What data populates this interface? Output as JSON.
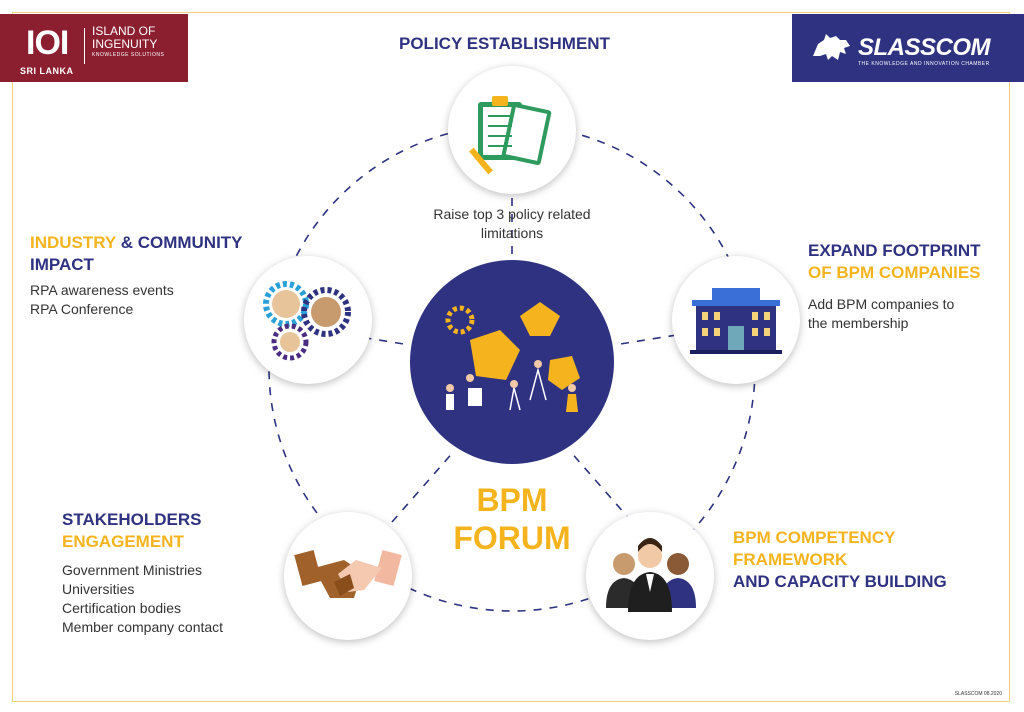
{
  "logos": {
    "ioi": {
      "mark": "IOI",
      "line1": "ISLAND OF",
      "line2": "INGENUITY",
      "line3": "KNOWLEDGE SOLUTIONS",
      "country": "SRI LANKA"
    },
    "slasscom": {
      "name": "SLASSCOM",
      "tagline": "THE KNOWLEDGE AND INNOVATION CHAMBER"
    }
  },
  "center": {
    "line1": "BPM",
    "line2": "FORUM"
  },
  "nodes": {
    "policy": {
      "title": "POLICY ESTABLISHMENT",
      "description_line1": "Raise top 3 policy related",
      "description_line2": "limitations"
    },
    "industry": {
      "title_part1": "INDUSTRY",
      "title_part2": " & COMMUNITY",
      "title_line2": "IMPACT",
      "items": [
        "RPA awareness events",
        "RPA Conference"
      ]
    },
    "expand": {
      "title_line1": "EXPAND FOOTPRINT",
      "title_line2": "OF BPM COMPANIES",
      "description_line1": "Add BPM companies to",
      "description_line2": "the membership"
    },
    "stakeholders": {
      "title_line1": "STAKEHOLDERS",
      "title_line2": "ENGAGEMENT",
      "items": [
        "Government Ministries",
        "Universities",
        "Certification bodies",
        "Member company contact"
      ]
    },
    "competency": {
      "title_line1": "BPM COMPETENCY",
      "title_line2": "FRAMEWORK",
      "title_line3": "AND CAPACITY BUILDING"
    }
  },
  "colors": {
    "navy": "#2e3280",
    "gold": "#f5b41e",
    "maroon": "#8b1e2f",
    "frame": "#f0d27a"
  },
  "icons": [
    "clipboard-checklist-icon",
    "gears-people-icon",
    "building-icon",
    "handshake-icon",
    "business-team-icon",
    "teamwork-illustration-icon",
    "lion-icon"
  ],
  "footer": "SLASSCOM 08.2020"
}
